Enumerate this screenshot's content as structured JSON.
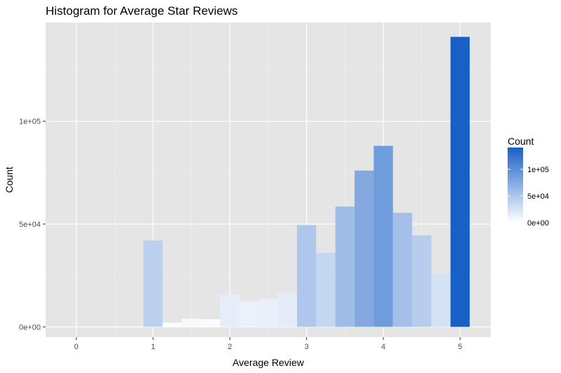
{
  "chart_data": {
    "type": "bar",
    "title": "Histogram for Average Star Reviews",
    "xlabel": "Average Review",
    "ylabel": "Count",
    "xlim": [
      -0.4,
      5.4
    ],
    "ylim": [
      -5000,
      148000
    ],
    "xticks": [
      0,
      1,
      2,
      3,
      4,
      5
    ],
    "xtick_labels": [
      "0",
      "1",
      "2",
      "3",
      "4",
      "5"
    ],
    "yticks": [
      0,
      50000,
      100000
    ],
    "ytick_labels": [
      "0e+00",
      "5e+04",
      "1e+05"
    ],
    "grid": true,
    "bin_width": 0.25,
    "bins": [
      {
        "x": 0.0,
        "count": 0
      },
      {
        "x": 0.25,
        "count": 0
      },
      {
        "x": 0.5,
        "count": 0
      },
      {
        "x": 0.75,
        "count": 0
      },
      {
        "x": 1.0,
        "count": 42000
      },
      {
        "x": 1.25,
        "count": 2000
      },
      {
        "x": 1.5,
        "count": 4000
      },
      {
        "x": 1.75,
        "count": 3800
      },
      {
        "x": 2.0,
        "count": 15800
      },
      {
        "x": 2.25,
        "count": 12300
      },
      {
        "x": 2.5,
        "count": 13500
      },
      {
        "x": 2.75,
        "count": 16500
      },
      {
        "x": 3.0,
        "count": 49500
      },
      {
        "x": 3.25,
        "count": 36000
      },
      {
        "x": 3.5,
        "count": 58500
      },
      {
        "x": 3.75,
        "count": 76000
      },
      {
        "x": 4.0,
        "count": 88000
      },
      {
        "x": 4.25,
        "count": 55500
      },
      {
        "x": 4.5,
        "count": 44500
      },
      {
        "x": 4.75,
        "count": 26000
      },
      {
        "x": 5.0,
        "count": 141000
      }
    ],
    "legend": {
      "title": "Count",
      "placement": "right",
      "labels": [
        "1e+05",
        "5e+04",
        "0e+00"
      ],
      "label_values": [
        100000,
        50000,
        0
      ],
      "low_color": "#ffffff",
      "high_color": "#1960c6",
      "min": 0,
      "max": 141000
    },
    "colors": {
      "panel_background": "#e5e5e5",
      "grid_major": "#ffffff",
      "grid_minor": "#f0f0f0"
    }
  }
}
